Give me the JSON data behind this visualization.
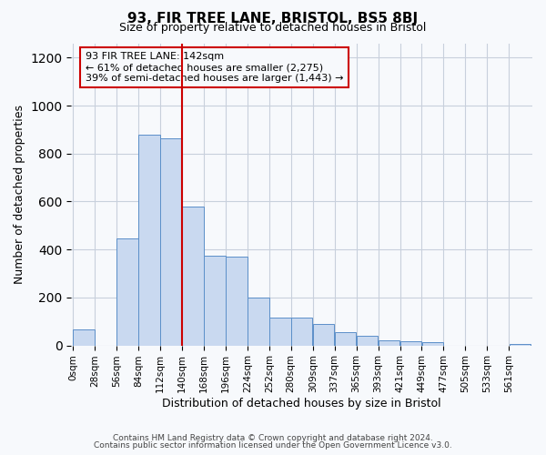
{
  "title1": "93, FIR TREE LANE, BRISTOL, BS5 8BJ",
  "title2": "Size of property relative to detached houses in Bristol",
  "xlabel": "Distribution of detached houses by size in Bristol",
  "ylabel": "Number of detached properties",
  "bar_labels": [
    "0sqm",
    "28sqm",
    "56sqm",
    "84sqm",
    "112sqm",
    "140sqm",
    "168sqm",
    "196sqm",
    "224sqm",
    "252sqm",
    "280sqm",
    "309sqm",
    "337sqm",
    "365sqm",
    "393sqm",
    "421sqm",
    "449sqm",
    "477sqm",
    "505sqm",
    "533sqm",
    "561sqm"
  ],
  "bar_values": [
    65,
    0,
    445,
    880,
    865,
    580,
    375,
    370,
    200,
    115,
    115,
    90,
    55,
    42,
    20,
    18,
    15,
    0,
    0,
    0,
    5
  ],
  "bar_color": "#c9d9f0",
  "bar_edge_color": "#5b8fc9",
  "annotation_line1": "93 FIR TREE LANE: 142sqm",
  "annotation_line2": "← 61% of detached houses are smaller (2,275)",
  "annotation_line3": "39% of semi-detached houses are larger (1,443) →",
  "vline_color": "#cc0000",
  "ylim": [
    0,
    1260
  ],
  "footnote1": "Contains HM Land Registry data © Crown copyright and database right 2024.",
  "footnote2": "Contains public sector information licensed under the Open Government Licence v3.0.",
  "background_color": "#f7f9fc",
  "grid_color": "#c8d0dc",
  "bin_width": 28,
  "vline_x": 140
}
